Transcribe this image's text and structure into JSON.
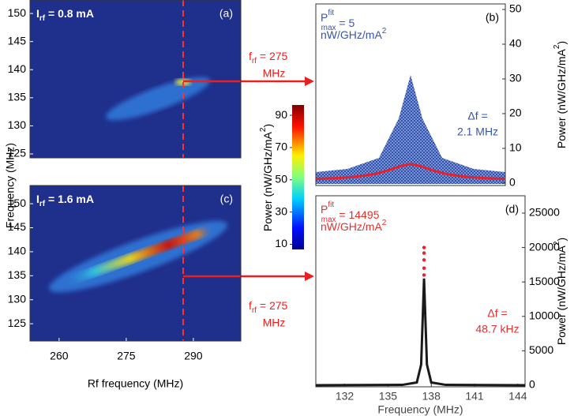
{
  "chart_data": [
    {
      "type": "heatmap",
      "panel": "(a)",
      "label": {
        "base": "I",
        "sub": "rf",
        "rest": " = 0.8 mA"
      },
      "ylabel": "Frequency (MHz)",
      "xlim": [
        253.5,
        300.6
      ],
      "ylim": [
        124.3,
        152.4
      ],
      "yticks": [
        125,
        130,
        135,
        140,
        145,
        150
      ]
    },
    {
      "type": "heatmap",
      "panel": "(c)",
      "label": {
        "base": "I",
        "sub": "rf",
        "rest": " = 1.6 mA"
      },
      "xlabel": "Rf frequency (MHz)",
      "xlim": [
        253.5,
        300.6
      ],
      "xticks": [
        260,
        275,
        290
      ],
      "ylim": [
        121.4,
        153.8
      ],
      "yticks": [
        125,
        130,
        135,
        140,
        145,
        150
      ]
    },
    {
      "type": "colorbar",
      "ylabel": {
        "base": "Power (nW/GHz/mA",
        "sup": "2",
        "rest": ")"
      },
      "ylim": [
        6.8,
        96.4
      ],
      "yticks": [
        10,
        30,
        50,
        70,
        90
      ]
    },
    {
      "type": "line",
      "panel": "(b)",
      "text_color": "#3a55a8",
      "pmax": {
        "base": "P",
        "sup": "fit",
        "sub": "max",
        "rest": " = 5",
        "line2": "nW/GHz/mA",
        "line2sup": "2"
      },
      "width_label": {
        "text": "Δf =",
        "line2": "2.1 MHz"
      },
      "y2label": {
        "base": "Power (nW/GHz/mA",
        "sup": "2",
        "rest": ")"
      },
      "xlim": [
        123,
        152
      ],
      "ylim": [
        -0.7,
        51.6
      ],
      "yticks": [
        0,
        10,
        20,
        30,
        40,
        50
      ],
      "series": [
        {
          "type": "line",
          "color": "#e8202a",
          "x": [
            123,
            126,
            129,
            132,
            134,
            136,
            137.5,
            139,
            141,
            143,
            146,
            149,
            152
          ],
          "values": [
            1.2,
            1.4,
            1.8,
            2.6,
            3.6,
            4.9,
            5.5,
            4.9,
            3.6,
            2.6,
            1.8,
            1.4,
            1.2
          ]
        }
      ]
    },
    {
      "type": "line",
      "panel": "(d)",
      "text_color": "#e03030",
      "pmax": {
        "base": "P",
        "sup": "fit",
        "sub": "max",
        "rest": " =  14495",
        "line2": "nW/GHz/mA",
        "line2sup": "2"
      },
      "width_label": {
        "text": "Δf =",
        "line2": "48.7 kHz"
      },
      "y2label": {
        "base": "Power (nW/GHz/mA",
        "sup": "2",
        "rest": ")"
      },
      "xlabel": "Frequency (MHz)",
      "xlim": [
        130,
        144.5
      ],
      "xticks": [
        132,
        135,
        138,
        141,
        144
      ],
      "ylim": [
        -230,
        27520
      ],
      "yticks": [
        0,
        5000,
        10000,
        15000,
        20000,
        25000
      ],
      "series": [
        {
          "type": "line",
          "color": "#1a1a1a",
          "x": [
            130,
            136,
            137,
            137.3,
            137.5,
            137.7,
            138,
            139,
            144.5
          ],
          "values": [
            0,
            50,
            400,
            3000,
            15500,
            3000,
            400,
            50,
            0
          ]
        },
        {
          "type": "scatter",
          "color": "#e8202a",
          "x": [
            137.5,
            137.5,
            137.5,
            137.5,
            137.5
          ],
          "values": [
            20000,
            19200,
            18200,
            17000,
            16000
          ]
        }
      ]
    }
  ],
  "annotations": [
    {
      "base": "f",
      "sub": "rf",
      "rest": " = 275",
      "line2": "MHz"
    },
    {
      "base": "f",
      "sub": "rf",
      "rest": " = 275",
      "line2": "MHz"
    }
  ]
}
